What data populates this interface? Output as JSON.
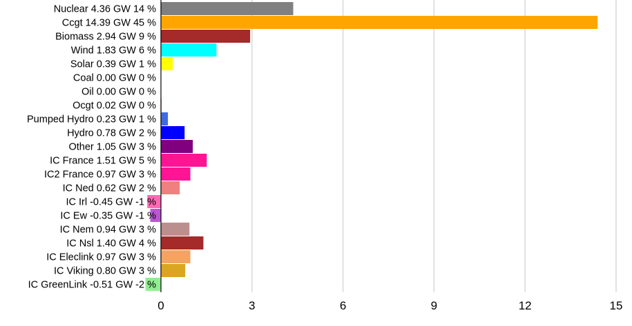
{
  "chart_data": {
    "type": "bar",
    "orientation": "horizontal",
    "title": "",
    "xlabel": "",
    "ylabel": "",
    "xlim": [
      0,
      15
    ],
    "x_ticks": [
      0,
      3,
      6,
      9,
      12,
      15
    ],
    "grid": "vertical",
    "legend": "none",
    "categories": [
      "Nuclear 4.36 GW 14 %",
      "Ccgt 14.39 GW 45 %",
      "Biomass 2.94 GW 9 %",
      "Wind 1.83 GW 6 %",
      "Solar 0.39 GW 1 %",
      "Coal 0.00 GW 0 %",
      "Oil 0.00 GW 0 %",
      "Ocgt 0.02 GW 0 %",
      "Pumped Hydro 0.23 GW 1 %",
      "Hydro 0.78 GW 2 %",
      "Other 1.05 GW 3 %",
      "IC France 1.51 GW 5 %",
      "IC2 France 0.97 GW 3 %",
      "IC Ned 0.62 GW 2 %",
      "IC Irl -0.45 GW -1 %",
      "IC Ew -0.35 GW -1 %",
      "IC Nem 0.94 GW 3 %",
      "IC Nsl 1.40 GW 4 %",
      "IC Eleclink 0.97 GW 3 %",
      "IC Viking 0.80 GW 3 %",
      "IC GreenLink -0.51 GW -2 %"
    ],
    "values": [
      4.36,
      14.39,
      2.94,
      1.83,
      0.39,
      0.0,
      0.0,
      0.02,
      0.23,
      0.78,
      1.05,
      1.51,
      0.97,
      0.62,
      -0.45,
      -0.35,
      0.94,
      1.4,
      0.97,
      0.8,
      -0.51
    ],
    "colors": [
      "#808080",
      "#ffa500",
      "#a52a2a",
      "#00ffff",
      "#ffff00",
      "#000000",
      "#8b0000",
      "#ff6347",
      "#4169e1",
      "#0000ff",
      "#800080",
      "#ff1493",
      "#ff1493",
      "#f08080",
      "#ff69b4",
      "#ba55d3",
      "#bc8f8f",
      "#a52a2a",
      "#f4a460",
      "#daa520",
      "#90ee90"
    ]
  }
}
